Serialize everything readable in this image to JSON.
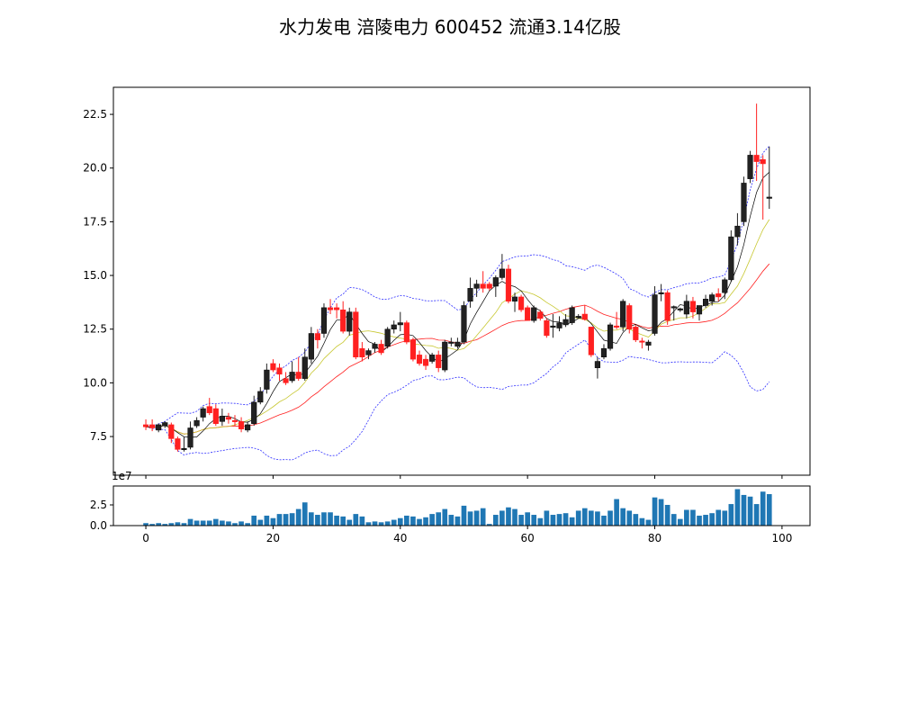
{
  "chart_data": {
    "type": "candlestick",
    "title": "水力发电 涪陵电力 600452 流通3.14亿股",
    "price_axis": {
      "ylim": [
        5.7,
        23.76
      ],
      "ticks": [
        7.5,
        10.0,
        12.5,
        15.0,
        17.5,
        20.0,
        22.5
      ],
      "tick_labels": [
        "7.5",
        "10.0",
        "12.5",
        "15.0",
        "17.5",
        "20.0",
        "22.5"
      ]
    },
    "x_axis": {
      "xlim": [
        -5.1,
        104.4
      ],
      "ticks": [
        0,
        20,
        40,
        60,
        80,
        100
      ],
      "tick_labels": [
        "0",
        "20",
        "40",
        "60",
        "80",
        "100"
      ]
    },
    "volume_axis": {
      "ylim": [
        0,
        4.78
      ],
      "ticks": [
        0,
        2.5
      ],
      "tick_labels": [
        "0.0",
        "2.5"
      ],
      "offset_label": "1e7"
    },
    "ohlc_fields": [
      "open",
      "high",
      "low",
      "close"
    ],
    "ohlc": [
      [
        8.05,
        8.3,
        7.8,
        7.95
      ],
      [
        8.05,
        8.3,
        7.75,
        7.9
      ],
      [
        7.8,
        8.1,
        7.7,
        8.05
      ],
      [
        8.0,
        8.2,
        7.9,
        8.15
      ],
      [
        8.05,
        8.15,
        7.2,
        7.4
      ],
      [
        7.4,
        7.5,
        6.8,
        6.9
      ],
      [
        6.9,
        7.5,
        6.8,
        6.95
      ],
      [
        7.0,
        8.2,
        6.9,
        7.9
      ],
      [
        8.0,
        8.4,
        7.9,
        8.25
      ],
      [
        8.4,
        8.9,
        8.2,
        8.8
      ],
      [
        8.9,
        9.3,
        8.5,
        8.6
      ],
      [
        8.8,
        9.0,
        8.0,
        8.1
      ],
      [
        8.2,
        8.8,
        8.0,
        8.45
      ],
      [
        8.4,
        8.6,
        8.1,
        8.3
      ],
      [
        8.25,
        8.5,
        8.0,
        8.2
      ],
      [
        8.2,
        8.4,
        7.7,
        7.85
      ],
      [
        7.8,
        8.2,
        7.7,
        8.05
      ],
      [
        8.1,
        9.4,
        8.0,
        9.1
      ],
      [
        9.1,
        9.8,
        9.0,
        9.6
      ],
      [
        9.7,
        10.9,
        9.5,
        10.6
      ],
      [
        10.9,
        11.1,
        10.5,
        10.6
      ],
      [
        10.7,
        10.9,
        10.1,
        10.4
      ],
      [
        10.2,
        10.5,
        9.9,
        10.0
      ],
      [
        10.1,
        11.0,
        10.0,
        10.5
      ],
      [
        10.5,
        11.2,
        10.1,
        10.2
      ],
      [
        10.2,
        11.6,
        10.1,
        11.2
      ],
      [
        11.1,
        12.6,
        10.9,
        12.3
      ],
      [
        12.3,
        12.5,
        11.6,
        12.0
      ],
      [
        12.3,
        13.7,
        12.1,
        13.5
      ],
      [
        13.5,
        13.9,
        13.2,
        13.4
      ],
      [
        13.5,
        13.7,
        13.0,
        13.4
      ],
      [
        13.4,
        13.8,
        12.3,
        12.4
      ],
      [
        12.4,
        13.5,
        12.2,
        13.3
      ],
      [
        13.3,
        13.5,
        11.1,
        11.2
      ],
      [
        11.6,
        11.9,
        11.0,
        11.2
      ],
      [
        11.3,
        11.6,
        11.1,
        11.5
      ],
      [
        11.6,
        11.9,
        11.4,
        11.8
      ],
      [
        11.8,
        12.0,
        11.3,
        11.4
      ],
      [
        11.7,
        12.6,
        11.6,
        12.5
      ],
      [
        12.5,
        12.9,
        12.3,
        12.7
      ],
      [
        12.7,
        13.3,
        12.4,
        12.8
      ],
      [
        12.8,
        12.9,
        11.8,
        11.9
      ],
      [
        12.0,
        12.1,
        11.0,
        11.1
      ],
      [
        11.3,
        11.5,
        10.8,
        10.9
      ],
      [
        11.1,
        11.3,
        10.6,
        10.8
      ],
      [
        11.0,
        11.4,
        10.9,
        11.3
      ],
      [
        11.3,
        11.5,
        10.5,
        10.7
      ],
      [
        10.6,
        12.0,
        10.5,
        11.9
      ],
      [
        11.85,
        12.1,
        11.7,
        11.9
      ],
      [
        11.7,
        12.1,
        11.6,
        11.9
      ],
      [
        11.9,
        13.8,
        11.8,
        13.6
      ],
      [
        13.8,
        14.9,
        13.5,
        14.4
      ],
      [
        14.4,
        14.8,
        14.0,
        14.6
      ],
      [
        14.6,
        15.2,
        14.2,
        14.4
      ],
      [
        14.6,
        14.7,
        14.3,
        14.4
      ],
      [
        14.5,
        15.0,
        14.0,
        14.9
      ],
      [
        14.9,
        16.0,
        14.8,
        15.3
      ],
      [
        15.3,
        15.5,
        13.7,
        13.8
      ],
      [
        13.8,
        14.2,
        13.3,
        14.0
      ],
      [
        14.0,
        14.1,
        13.3,
        13.4
      ],
      [
        13.5,
        13.6,
        12.9,
        12.9
      ],
      [
        12.9,
        13.6,
        12.8,
        13.5
      ],
      [
        13.3,
        13.4,
        12.9,
        13.0
      ],
      [
        12.9,
        13.0,
        12.1,
        12.2
      ],
      [
        12.6,
        13.2,
        12.1,
        12.65
      ],
      [
        12.55,
        13.1,
        12.4,
        12.8
      ],
      [
        12.7,
        13.2,
        12.6,
        12.95
      ],
      [
        12.8,
        13.6,
        12.7,
        13.5
      ],
      [
        13.05,
        13.2,
        13.0,
        13.1
      ],
      [
        13.2,
        13.6,
        12.9,
        12.95
      ],
      [
        12.6,
        12.6,
        11.2,
        11.3
      ],
      [
        10.7,
        11.2,
        10.2,
        11.0
      ],
      [
        11.2,
        11.8,
        11.1,
        11.6
      ],
      [
        11.6,
        12.8,
        11.5,
        12.7
      ],
      [
        12.65,
        13.3,
        12.5,
        12.6
      ],
      [
        12.6,
        13.9,
        12.4,
        13.8
      ],
      [
        13.6,
        13.7,
        12.3,
        12.5
      ],
      [
        12.6,
        12.7,
        11.9,
        12.0
      ],
      [
        11.95,
        12.1,
        11.6,
        11.9
      ],
      [
        11.75,
        12.0,
        11.5,
        11.9
      ],
      [
        12.3,
        14.5,
        12.2,
        14.1
      ],
      [
        14.15,
        14.6,
        13.8,
        14.2
      ],
      [
        14.2,
        14.3,
        12.7,
        12.9
      ],
      [
        13.5,
        13.6,
        12.9,
        13.55
      ],
      [
        13.4,
        13.5,
        13.3,
        13.45
      ],
      [
        13.2,
        14.1,
        13.0,
        13.8
      ],
      [
        13.8,
        14.0,
        13.0,
        13.3
      ],
      [
        13.2,
        13.6,
        12.9,
        13.6
      ],
      [
        13.6,
        14.1,
        13.5,
        13.9
      ],
      [
        13.8,
        14.2,
        13.6,
        14.1
      ],
      [
        14.15,
        14.4,
        13.8,
        14.0
      ],
      [
        14.2,
        14.9,
        13.9,
        14.8
      ],
      [
        14.8,
        17.1,
        14.7,
        16.8
      ],
      [
        16.8,
        17.9,
        16.4,
        17.3
      ],
      [
        17.5,
        19.6,
        17.3,
        19.3
      ],
      [
        19.5,
        20.8,
        19.3,
        20.6
      ],
      [
        20.6,
        23.0,
        19.4,
        20.3
      ],
      [
        20.4,
        20.6,
        17.6,
        20.2
      ],
      [
        18.6,
        21.0,
        18.1,
        18.65
      ]
    ],
    "volume_1e7": [
      0.3,
      0.2,
      0.3,
      0.2,
      0.3,
      0.4,
      0.3,
      0.8,
      0.6,
      0.6,
      0.6,
      0.8,
      0.6,
      0.5,
      0.3,
      0.5,
      0.3,
      1.2,
      0.7,
      1.2,
      0.9,
      1.4,
      1.4,
      1.5,
      2.0,
      2.8,
      1.6,
      1.3,
      1.6,
      1.6,
      1.2,
      1.1,
      0.7,
      1.4,
      1.1,
      0.4,
      0.5,
      0.4,
      0.5,
      0.7,
      0.9,
      1.2,
      1.1,
      0.8,
      1.0,
      1.4,
      1.6,
      2.0,
      1.3,
      1.1,
      2.4,
      1.7,
      1.8,
      2.1,
      0.2,
      1.3,
      1.8,
      2.2,
      2.0,
      1.3,
      1.6,
      1.3,
      0.9,
      1.8,
      1.3,
      1.4,
      1.5,
      1.0,
      1.8,
      2.1,
      1.8,
      1.7,
      1.2,
      1.8,
      3.2,
      2.1,
      1.8,
      1.4,
      0.9,
      0.7,
      3.4,
      3.2,
      2.5,
      1.4,
      0.8,
      1.9,
      1.9,
      1.2,
      1.3,
      1.5,
      1.9,
      1.8,
      2.6,
      4.4,
      3.7,
      3.5,
      2.6,
      4.1,
      3.8
    ],
    "overlays": [
      "MA5",
      "MA10",
      "MA20",
      "Bollinger upper",
      "Bollinger lower"
    ],
    "colors": {
      "up": "#222222",
      "down": "#ff2020",
      "ma5": "#000000",
      "ma10": "#c8c832",
      "ma20": "#ff2020",
      "boll": "#3030ff",
      "volume": "#1f77b4"
    }
  }
}
